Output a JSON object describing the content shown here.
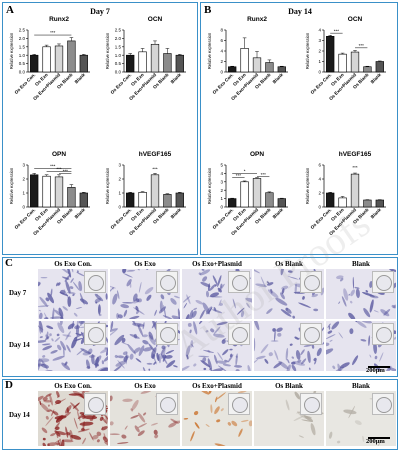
{
  "panels": {
    "A": {
      "letter": "A",
      "title": "Day 7"
    },
    "B": {
      "letter": "B",
      "title": "Day 14"
    },
    "C": {
      "letter": "C"
    },
    "D": {
      "letter": "D"
    }
  },
  "groups": [
    "Os Exo Con.",
    "Os Exo",
    "Os Exo+Plasmid",
    "Os Blank",
    "Blank"
  ],
  "y_label": "Relative expression",
  "colors": {
    "black": "#1a1a1a",
    "white": "#ffffff",
    "light": "#d6d6d6",
    "mid": "#8c8c8c",
    "dark": "#555555",
    "frame": "#3a90c8"
  },
  "chart_data": [
    {
      "panel": "A",
      "type": "bar",
      "title": "Runx2",
      "categories": [
        "Os Exo Con.",
        "Os Exo",
        "Os Exo+Plasmid",
        "Os Blank",
        "Blank"
      ],
      "values": [
        1.0,
        1.5,
        1.55,
        1.85,
        1.0
      ],
      "errors": [
        0.05,
        0.1,
        0.12,
        0.2,
        0.05
      ],
      "ylim": [
        0,
        2.5
      ],
      "yticks": [
        "0.0",
        "0.5",
        "1.0",
        "1.5",
        "2.0",
        "2.5"
      ],
      "annotations": [
        {
          "from": 0,
          "to": 3,
          "y": 2.2,
          "label": "***"
        }
      ]
    },
    {
      "panel": "A",
      "type": "bar",
      "title": "OCN",
      "categories": [
        "Os Exo Con.",
        "Os Exo",
        "Os Exo+Plasmid",
        "Os Blank",
        "Blank"
      ],
      "values": [
        1.0,
        1.2,
        1.65,
        1.1,
        1.0
      ],
      "errors": [
        0.1,
        0.2,
        0.2,
        0.3,
        0.05
      ],
      "ylim": [
        0,
        2.5
      ],
      "yticks": [
        "0.0",
        "0.5",
        "1.0",
        "1.5",
        "2.0",
        "2.5"
      ],
      "annotations": []
    },
    {
      "panel": "A",
      "type": "bar",
      "title": "OPN",
      "categories": [
        "Os Exo Con.",
        "Os Exo",
        "Os Exo+Plasmid",
        "Os Blank",
        "Blank"
      ],
      "values": [
        2.3,
        2.2,
        2.15,
        1.4,
        1.0
      ],
      "errors": [
        0.1,
        0.1,
        0.15,
        0.2,
        0.05
      ],
      "ylim": [
        0,
        3
      ],
      "yticks": [
        "0",
        "1",
        "2",
        "3"
      ],
      "annotations": [
        {
          "from": 0,
          "to": 3,
          "y": 2.75,
          "label": "***"
        },
        {
          "from": 1,
          "to": 3,
          "y": 2.55,
          "label": "***"
        },
        {
          "from": 2,
          "to": 3,
          "y": 2.4,
          "label": "***"
        }
      ]
    },
    {
      "panel": "A",
      "type": "bar",
      "title": "hVEGF165",
      "categories": [
        "Os Exo Con.",
        "Os Exo",
        "Os Exo+Plasmid",
        "Os Blank",
        "Blank"
      ],
      "values": [
        1.0,
        1.05,
        2.3,
        0.9,
        1.0
      ],
      "errors": [
        0.05,
        0.05,
        0.1,
        0.05,
        0.05
      ],
      "ylim": [
        0,
        3
      ],
      "yticks": [
        "0",
        "1",
        "2",
        "3"
      ],
      "annotations": [
        {
          "from": 2,
          "to": 2,
          "y": 2.55,
          "label": "***"
        }
      ]
    },
    {
      "panel": "B",
      "type": "bar",
      "title": "Runx2",
      "categories": [
        "Os Exo Con.",
        "Os Exo",
        "Os Exo+Plasmid",
        "Os Blank",
        "Blank"
      ],
      "values": [
        1.0,
        4.5,
        2.7,
        1.8,
        1.0
      ],
      "errors": [
        0.1,
        2.0,
        1.2,
        0.5,
        0.1
      ],
      "ylim": [
        0,
        8
      ],
      "yticks": [
        "0",
        "2",
        "4",
        "6",
        "8"
      ],
      "annotations": []
    },
    {
      "panel": "B",
      "type": "bar",
      "title": "OCN",
      "categories": [
        "Os Exo Con.",
        "Os Exo",
        "Os Exo+Plasmid",
        "Os Blank",
        "Blank"
      ],
      "values": [
        3.4,
        1.7,
        1.9,
        0.5,
        1.0
      ],
      "errors": [
        0.1,
        0.1,
        0.15,
        0.05,
        0.05
      ],
      "ylim": [
        0,
        4
      ],
      "yticks": [
        "0",
        "1",
        "2",
        "3",
        "4"
      ],
      "annotations": [
        {
          "from": 0,
          "to": 1,
          "y": 3.7,
          "label": "***"
        },
        {
          "from": 2,
          "to": 3,
          "y": 2.3,
          "label": "***"
        }
      ]
    },
    {
      "panel": "B",
      "type": "bar",
      "title": "OPN",
      "categories": [
        "Os Exo Con.",
        "Os Exo",
        "Os Exo+Plasmid",
        "Os Blank",
        "Blank"
      ],
      "values": [
        1.0,
        3.0,
        3.4,
        1.7,
        1.0
      ],
      "errors": [
        0.05,
        0.1,
        0.1,
        0.1,
        0.05
      ],
      "ylim": [
        0,
        5
      ],
      "yticks": [
        "0",
        "1",
        "2",
        "3",
        "4",
        "5"
      ],
      "annotations": [
        {
          "from": 0,
          "to": 1,
          "y": 3.5,
          "label": "***"
        },
        {
          "from": 0,
          "to": 2,
          "y": 4.0,
          "label": "*"
        },
        {
          "from": 2,
          "to": 3,
          "y": 3.6,
          "label": "***"
        }
      ]
    },
    {
      "panel": "B",
      "type": "bar",
      "title": "hVEGF165",
      "categories": [
        "Os Exo Con.",
        "Os Exo",
        "Os Exo+Plasmid",
        "Os Blank",
        "Blank"
      ],
      "values": [
        2.0,
        1.3,
        4.7,
        1.0,
        1.0
      ],
      "errors": [
        0.1,
        0.2,
        0.15,
        0.05,
        0.05
      ],
      "ylim": [
        0,
        6
      ],
      "yticks": [
        "0",
        "2",
        "4",
        "6"
      ],
      "annotations": [
        {
          "from": 2,
          "to": 2,
          "y": 5.3,
          "label": "***"
        }
      ]
    }
  ],
  "panel_c": {
    "rows": [
      "Day 7",
      "Day 14"
    ],
    "scale": "200μm"
  },
  "panel_d": {
    "rows": [
      "Day 14"
    ],
    "scale": "200μm"
  },
  "watermark": "Author Proofs"
}
